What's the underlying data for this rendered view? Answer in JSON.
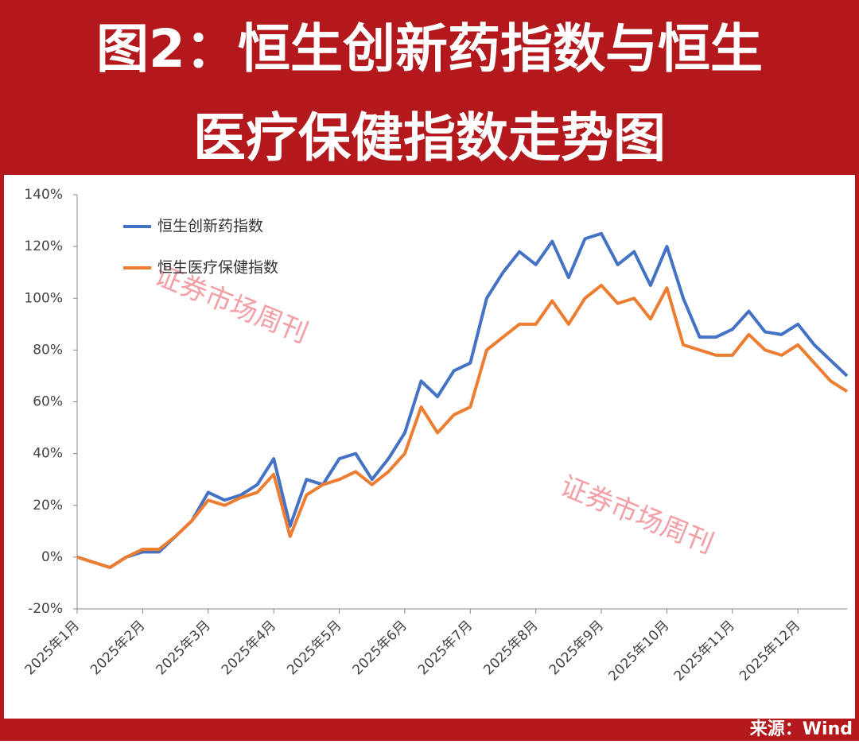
{
  "chart_data": {
    "type": "line",
    "title_lines": [
      "图2：恒生创新药指数与恒生",
      "医疗保健指数走势图"
    ],
    "source": "来源：Wind",
    "watermarks": [
      "证券市场周刊",
      "证券市场周刊"
    ],
    "categories": [
      "2025年1月",
      null,
      null,
      null,
      "2025年2月",
      null,
      null,
      null,
      "2025年3月",
      null,
      null,
      null,
      "2025年4月",
      null,
      null,
      null,
      "2025年5月",
      null,
      null,
      null,
      "2025年6月",
      null,
      null,
      null,
      "2025年7月",
      null,
      null,
      null,
      "2025年8月",
      null,
      null,
      null,
      "2025年9月",
      null,
      null,
      null,
      "2025年10月",
      null,
      null,
      null,
      "2025年11月",
      null,
      null,
      null,
      "2025年12月",
      null,
      null,
      null
    ],
    "series": [
      {
        "name": "恒生创新药指数",
        "color": "#4472c4",
        "values": [
          0,
          -2,
          -4,
          0,
          2,
          2,
          8,
          14,
          25,
          22,
          24,
          28,
          38,
          12,
          30,
          28,
          38,
          40,
          30,
          38,
          48,
          68,
          62,
          72,
          75,
          100,
          110,
          118,
          113,
          122,
          108,
          123,
          125,
          113,
          118,
          105,
          120,
          100,
          85,
          85,
          88,
          95,
          87,
          86,
          90,
          82,
          76,
          70
        ]
      },
      {
        "name": "恒生医疗保健指数",
        "color": "#ed7d31",
        "values": [
          0,
          -2,
          -4,
          0,
          3,
          3,
          8,
          14,
          22,
          20,
          23,
          25,
          32,
          8,
          24,
          28,
          30,
          33,
          28,
          33,
          40,
          58,
          48,
          55,
          58,
          80,
          85,
          90,
          90,
          99,
          90,
          100,
          105,
          98,
          100,
          92,
          104,
          82,
          80,
          78,
          78,
          86,
          80,
          78,
          82,
          75,
          68,
          64
        ]
      }
    ],
    "ylim": [
      -20,
      140
    ],
    "yticks": [
      {
        "value": -20,
        "label": "-20%"
      },
      {
        "value": 0,
        "label": "0%"
      },
      {
        "value": 20,
        "label": "20%"
      },
      {
        "value": 40,
        "label": "40%"
      },
      {
        "value": 60,
        "label": "60%"
      },
      {
        "value": 80,
        "label": "80%"
      },
      {
        "value": 100,
        "label": "100%"
      },
      {
        "value": 120,
        "label": "120%"
      },
      {
        "value": 140,
        "label": "140%"
      }
    ],
    "grid": false
  }
}
